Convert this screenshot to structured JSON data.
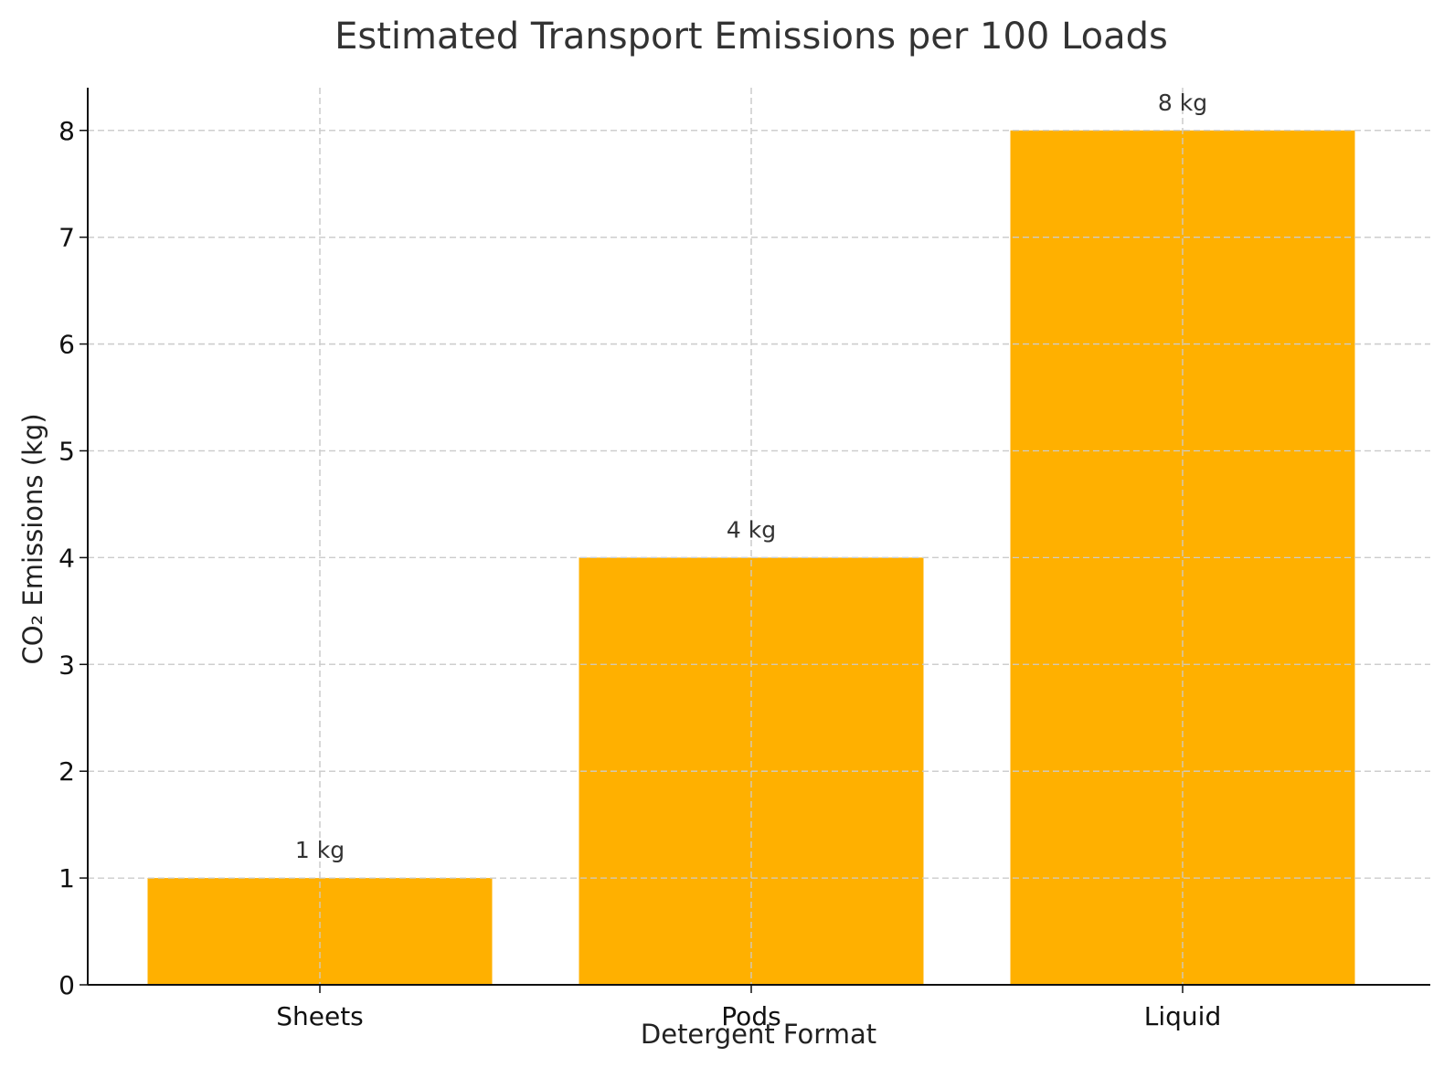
{
  "chart_data": {
    "type": "bar",
    "title": "Estimated Transport Emissions per 100 Loads",
    "xlabel": "Detergent Format",
    "ylabel": "CO₂ Emissions (kg)",
    "categories": [
      "Sheets",
      "Pods",
      "Liquid"
    ],
    "values": [
      1,
      4,
      8
    ],
    "data_labels": [
      "1 kg",
      "4 kg",
      "8 kg"
    ],
    "ylim": [
      0,
      8.4
    ],
    "yticks": [
      0,
      1,
      2,
      3,
      4,
      5,
      6,
      7,
      8
    ],
    "grid": true,
    "bar_color": "#FFB000"
  }
}
